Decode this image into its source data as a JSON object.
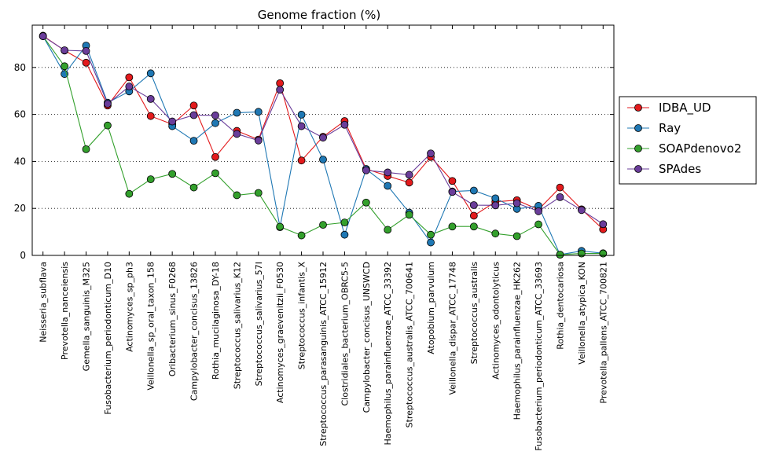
{
  "chart_data": {
    "type": "line",
    "title": "Genome fraction (%)",
    "xlabel": "",
    "ylabel": "",
    "ylim": [
      0,
      98
    ],
    "yticks": [
      0,
      20,
      40,
      60,
      80
    ],
    "grid": "horizontal dotted",
    "legend_position": "right",
    "categories": [
      "Neisseria_subflava",
      "Prevotella_nanceiensis",
      "Gemella_sanguinis_M325",
      "Fusobacterium_periodonticum_D10",
      "Actinomyces_sp_ph3",
      "Veillonella_sp_oral_taxon_158",
      "Oribacterium_sinus_F0268",
      "Campylobacter_concisus_13826",
      "Rothia_mucilaginosa_DY-18",
      "Streptococcus_salivarius_K12",
      "Streptococcus_salivarius_57I",
      "Actinomyces_graevenitzii_F0530",
      "Streptococcus_infantis_X",
      "Streptococcus_parasanguinis_ATCC_15912",
      "Clostridiales_bacterium_OBRC5-5",
      "Campylobacter_concisus_UNSWCD",
      "Haemophilus_parainfluenzae_ATCC_33392",
      "Streptococcus_australis_ATCC_700641",
      "Atopobium_parvulum",
      "Veillonella_dispar_ATCC_17748",
      "Streptococcus_australis",
      "Actinomyces_odontolyticus",
      "Haemophilus_parainfluenzae_HK262",
      "Fusobacterium_periodonticum_ATCC_33693",
      "Rothia_dentocariosa",
      "Veillonella_atypica_KON",
      "Prevotella_pallens_ATCC_700821"
    ],
    "series": [
      {
        "name": "IDBA_UD",
        "color": "#e31a1c",
        "values": [
          93.5,
          87.2,
          82.0,
          63.8,
          75.8,
          59.3,
          55.8,
          63.8,
          41.9,
          53.0,
          49.3,
          73.3,
          40.4,
          50.5,
          57.2,
          36.8,
          33.8,
          31.0,
          41.9,
          31.7,
          16.9,
          22.8,
          23.5,
          19.5,
          28.9,
          19.6,
          11.1
        ]
      },
      {
        "name": "Ray",
        "color": "#1f78b4",
        "values": [
          93.3,
          77.2,
          89.3,
          65.0,
          69.8,
          77.5,
          55.0,
          48.8,
          56.3,
          60.7,
          61.1,
          12.0,
          59.9,
          40.8,
          8.8,
          36.7,
          29.6,
          18.2,
          5.5,
          27.2,
          27.6,
          24.3,
          19.8,
          21.1,
          0.3,
          1.9,
          0.9
        ]
      },
      {
        "name": "SOAPdenovo2",
        "color": "#33a02c",
        "values": [
          93.3,
          80.5,
          45.2,
          55.3,
          26.2,
          32.4,
          34.7,
          28.9,
          35.0,
          25.6,
          26.6,
          12.2,
          8.5,
          13.0,
          14.0,
          22.5,
          10.9,
          17.3,
          8.8,
          12.3,
          12.3,
          9.3,
          8.2,
          13.2,
          0.3,
          0.8,
          0.8
        ]
      },
      {
        "name": "SPAdes",
        "color": "#6a3d9a",
        "values": [
          93.3,
          87.3,
          87.0,
          64.5,
          71.9,
          66.6,
          57.0,
          59.7,
          59.6,
          51.7,
          48.9,
          70.5,
          55.0,
          50.1,
          55.6,
          36.2,
          35.3,
          34.3,
          43.4,
          27.0,
          21.4,
          21.3,
          22.2,
          18.8,
          24.8,
          19.3,
          13.3
        ]
      }
    ]
  }
}
